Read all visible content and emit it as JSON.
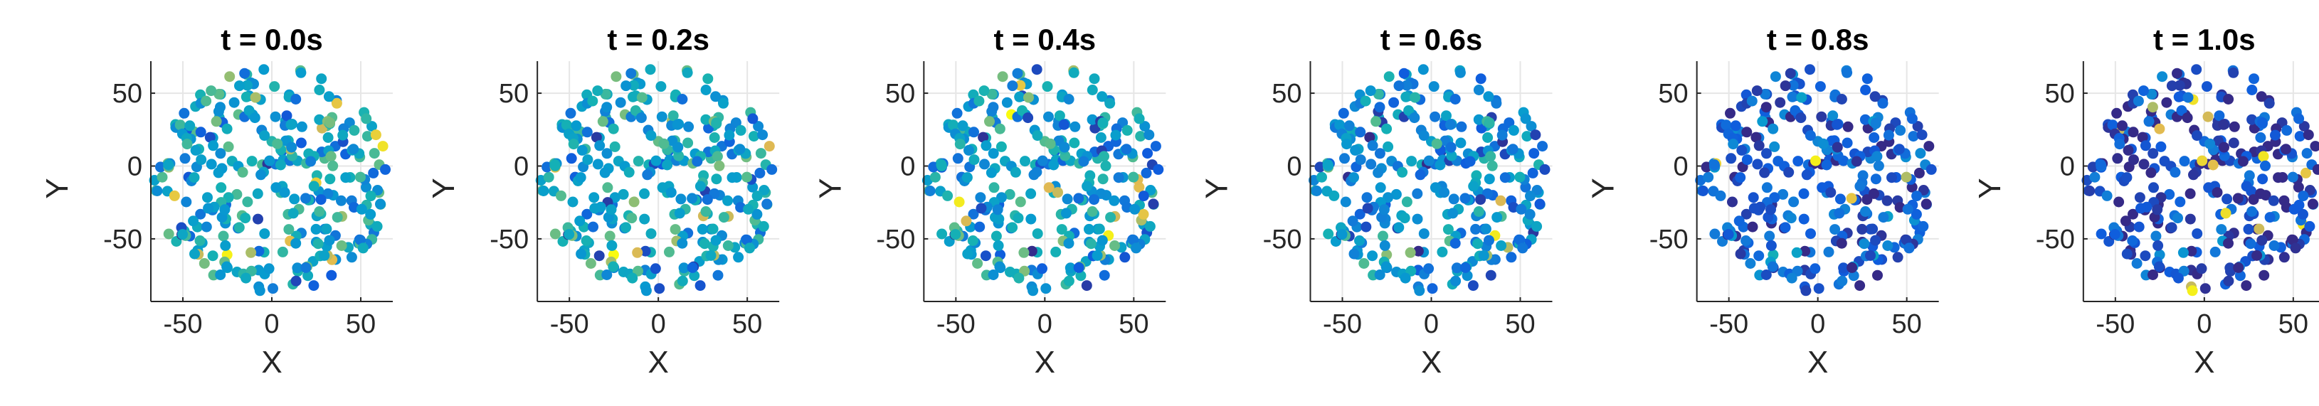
{
  "chart_data": {
    "type": "scatter",
    "layout": "1x6 small multiples",
    "xlabel": "X",
    "ylabel": "Y",
    "xlim": [
      -68,
      68
    ],
    "ylim": [
      -93,
      72
    ],
    "xticks": [
      -50,
      0,
      50
    ],
    "yticks": [
      -50,
      0,
      50
    ],
    "grid": true,
    "colormap": "parula",
    "points_per_panel": 300,
    "panels": [
      {
        "title": "t = 0.0s",
        "time_s": 0.0,
        "mean_color_level": 0.5
      },
      {
        "title": "t = 0.2s",
        "time_s": 0.2,
        "mean_color_level": 0.5
      },
      {
        "title": "t = 0.4s",
        "time_s": 0.4,
        "mean_color_level": 0.46
      },
      {
        "title": "t = 0.6s",
        "time_s": 0.6,
        "mean_color_level": 0.38
      },
      {
        "title": "t = 0.8s",
        "time_s": 0.8,
        "mean_color_level": 0.17
      },
      {
        "title": "t = 1.0s",
        "time_s": 1.0,
        "mean_color_level": 0.08
      }
    ]
  }
}
